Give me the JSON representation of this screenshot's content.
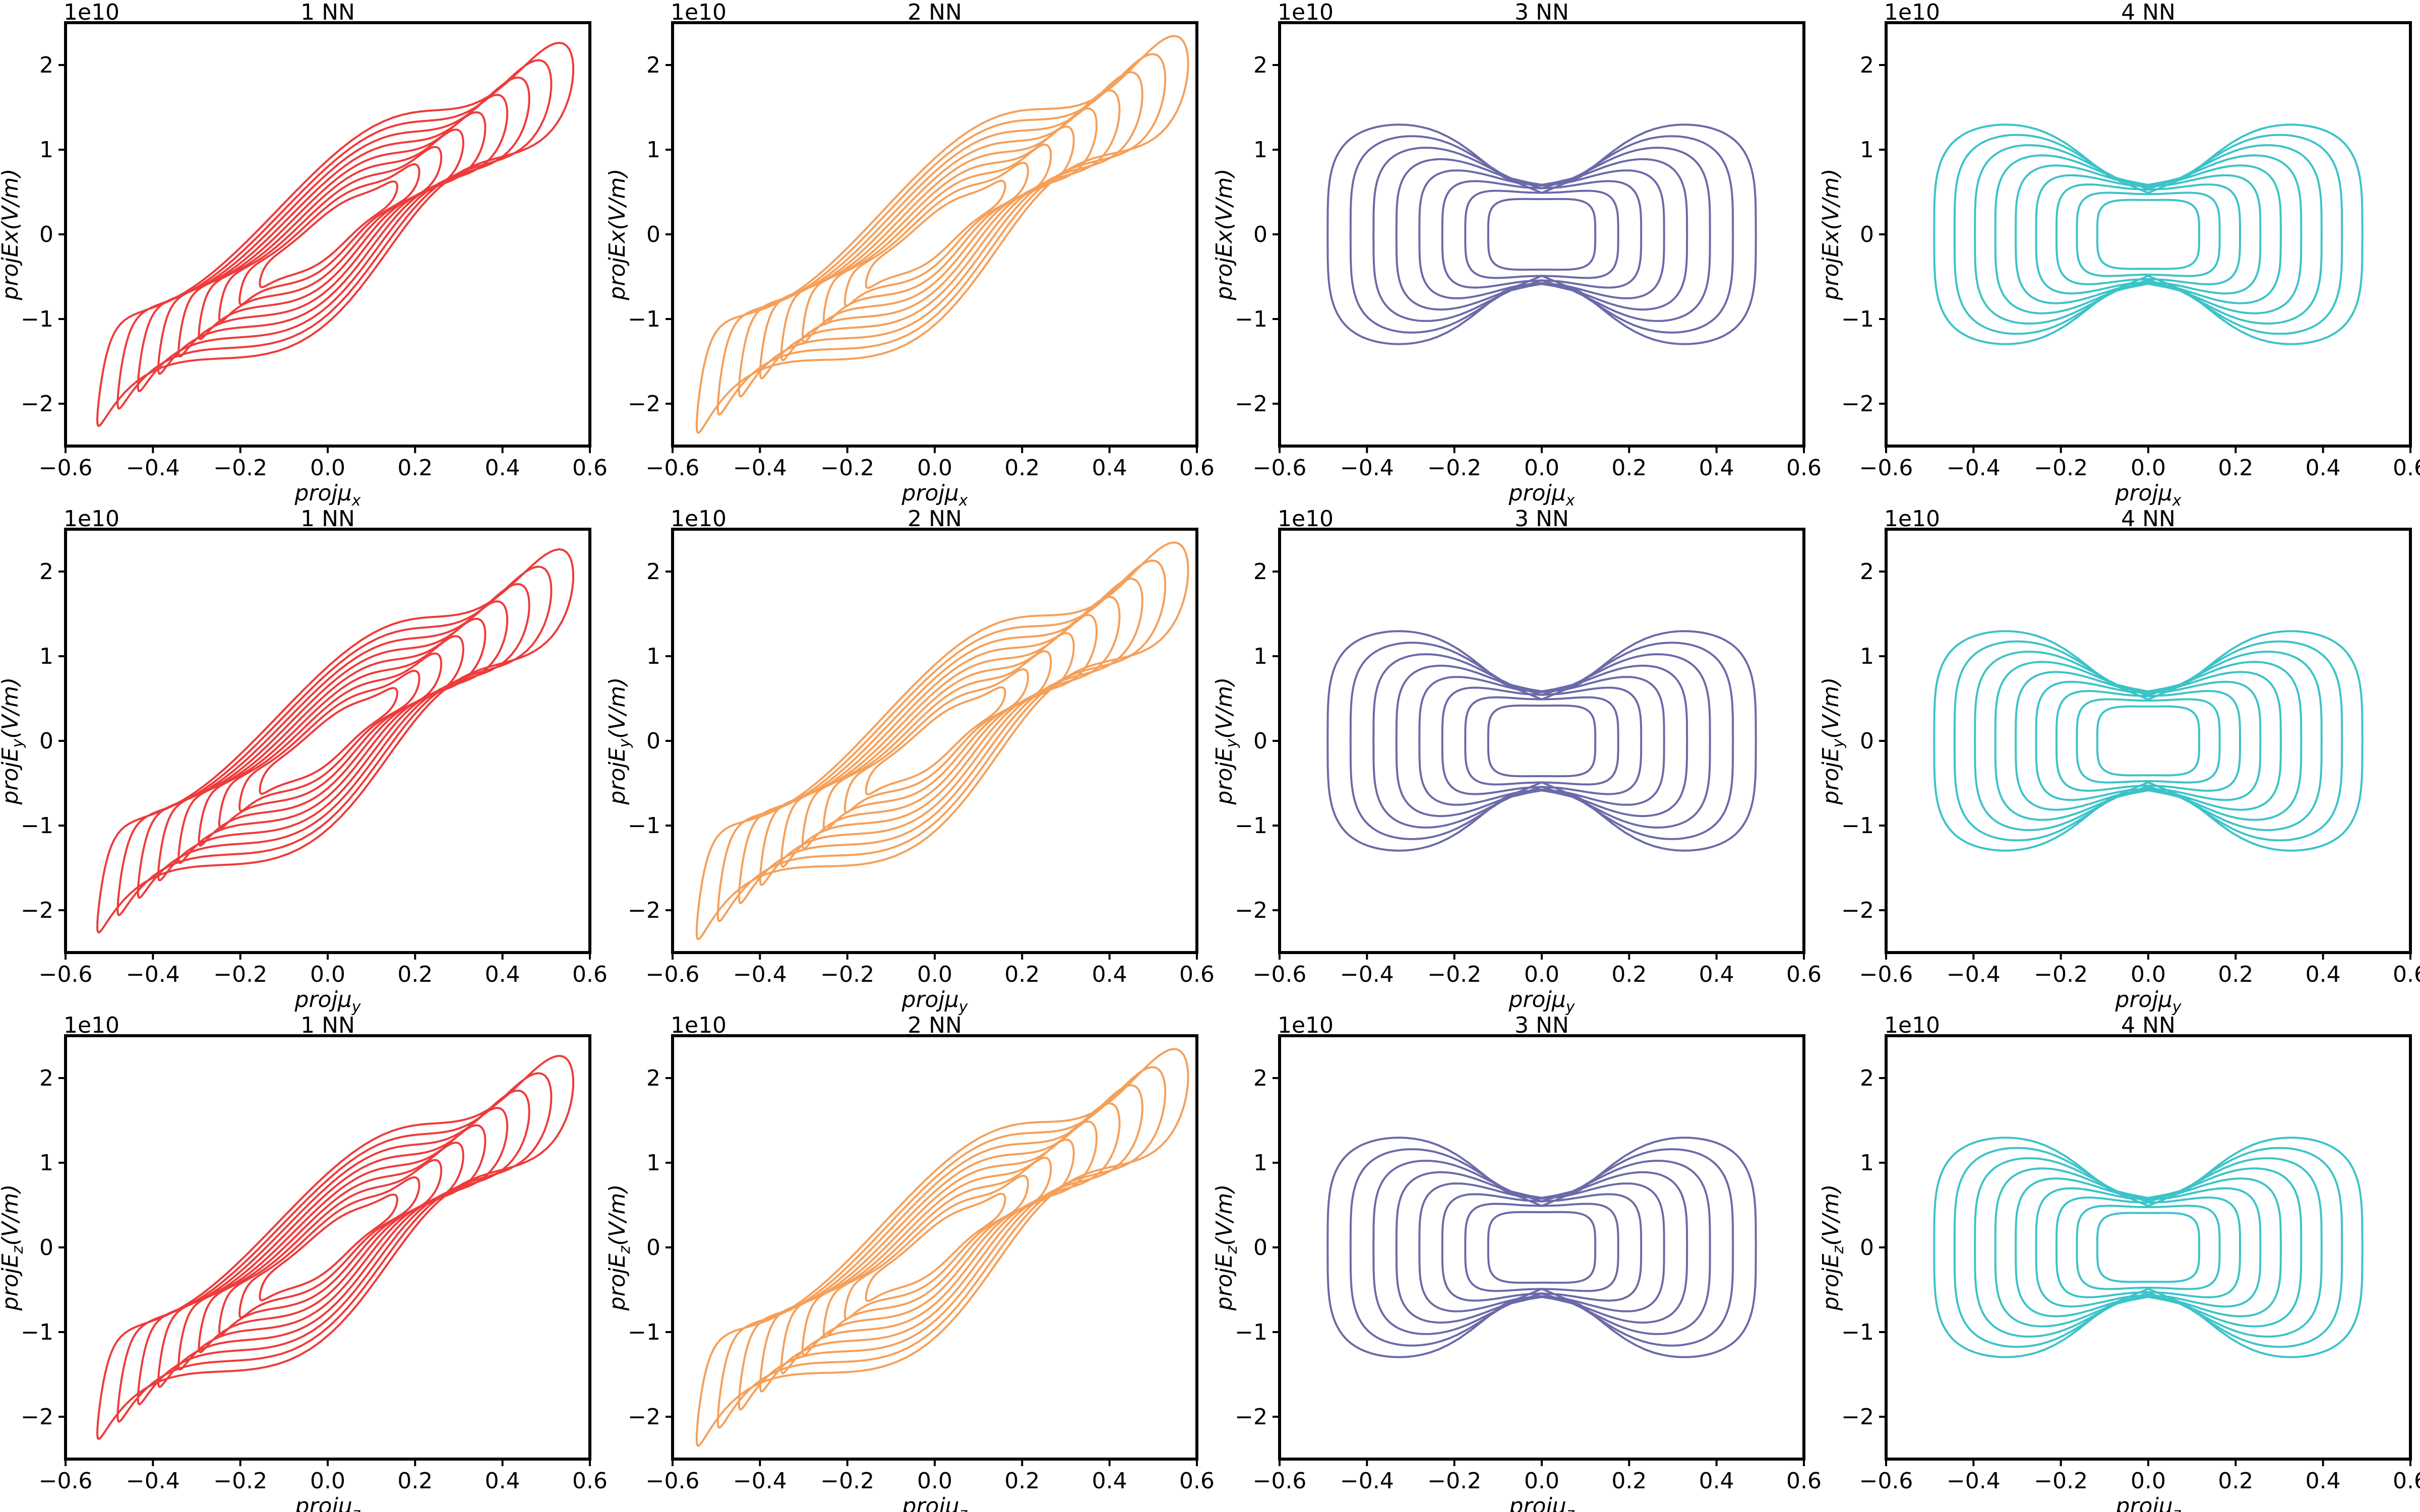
{
  "chart_data": {
    "type": "contour",
    "grid": false,
    "xlim": [
      -0.6,
      0.6
    ],
    "ylim": [
      -2.5,
      2.5
    ],
    "x_ticks": [
      "−0.6",
      "−0.4",
      "−0.2",
      "0.0",
      "0.2",
      "0.4",
      "0.6"
    ],
    "y_ticks": [
      "−2",
      "−1",
      "0",
      "1",
      "2"
    ],
    "y_offset_label": "1e10",
    "columns": [
      {
        "title": "1 NN",
        "color": "#ee3b3b",
        "shape": "diagonal",
        "levels": 9
      },
      {
        "title": "2 NN",
        "color": "#f5a05a",
        "shape": "diagonal-wide",
        "levels": 9
      },
      {
        "title": "3 NN",
        "color": "#6b6aa8",
        "shape": "bowtie",
        "levels": 8
      },
      {
        "title": "4 NN",
        "color": "#3cc3c8",
        "shape": "bowtie",
        "levels": 9
      }
    ],
    "rows": [
      {
        "ylabel_main": "projEx(V/m)",
        "ylabel_sub": "",
        "xlabel_main": "projμ",
        "xlabel_sub": "x"
      },
      {
        "ylabel_main": "projE",
        "ylabel_sub": "y",
        "ylabel_tail": "(V/m)",
        "xlabel_main": "projμ",
        "xlabel_sub": "y"
      },
      {
        "ylabel_main": "projE",
        "ylabel_sub": "z",
        "ylabel_tail": "(V/m)",
        "xlabel_main": "projμ",
        "xlabel_sub": "z"
      }
    ]
  }
}
